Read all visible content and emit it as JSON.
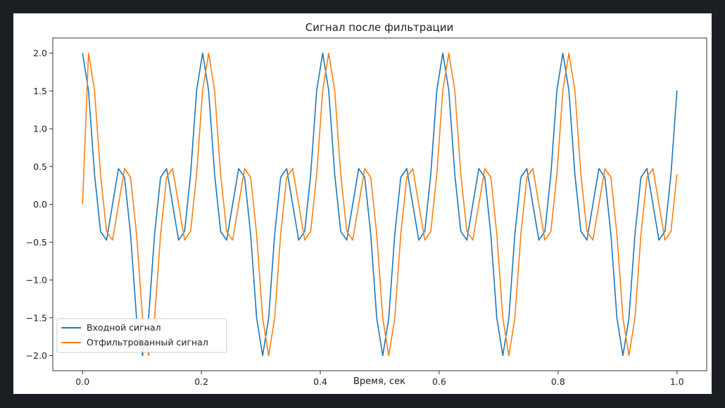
{
  "chart_data": {
    "type": "line",
    "title": "Сигнал после фильтрации",
    "xlabel": "Время, сек",
    "ylabel": "",
    "xlim": [
      -0.05,
      1.05
    ],
    "ylim": [
      -2.2,
      2.2
    ],
    "xticks": [
      0.0,
      0.2,
      0.4,
      0.6,
      0.8,
      1.0
    ],
    "xtick_labels": [
      "0.0",
      "0.2",
      "0.4",
      "0.6",
      "0.8",
      "1.0"
    ],
    "yticks": [
      -2.0,
      -1.5,
      -1.0,
      -0.5,
      0.0,
      0.5,
      1.0,
      1.5,
      2.0
    ],
    "ytick_labels": [
      "−2.0",
      "−1.5",
      "−1.0",
      "−0.5",
      "0.0",
      "0.5",
      "1.0",
      "1.5",
      "2.0"
    ],
    "grid": false,
    "legend": "lower-left",
    "sampling": {
      "x_start": 0.0,
      "x_end": 1.0,
      "points": 100
    },
    "series": [
      {
        "name": "Входной сигнал",
        "color": "#1f77b4",
        "values": [
          2.0,
          1.506,
          0.397,
          -0.357,
          -0.473,
          -0.0,
          0.473,
          0.357,
          -0.397,
          -1.506,
          -2.0,
          -1.506,
          -0.397,
          0.357,
          0.473,
          0.0,
          -0.473,
          -0.357,
          0.397,
          1.506,
          2.0,
          1.506,
          0.397,
          -0.357,
          -0.473,
          -0.0,
          0.473,
          0.357,
          -0.397,
          -1.506,
          -2.0,
          -1.506,
          -0.397,
          0.357,
          0.473,
          0.0,
          -0.473,
          -0.357,
          0.397,
          1.506,
          2.0,
          1.506,
          0.397,
          -0.357,
          -0.473,
          -0.0,
          0.473,
          0.357,
          -0.397,
          -1.506,
          -2.0,
          -1.506,
          -0.397,
          0.357,
          0.473,
          0.0,
          -0.473,
          -0.357,
          0.397,
          1.506,
          2.0,
          1.506,
          0.397,
          -0.357,
          -0.473,
          -0.0,
          0.473,
          0.357,
          -0.397,
          -1.506,
          -2.0,
          -1.506,
          -0.397,
          0.357,
          0.473,
          0.0,
          -0.473,
          -0.357,
          0.397,
          1.506,
          2.0,
          1.506,
          0.397,
          -0.357,
          -0.473,
          -0.0,
          0.473,
          0.357,
          -0.397,
          -1.506,
          -2.0,
          -1.506,
          -0.397,
          0.357,
          0.473,
          0.0,
          -0.473,
          -0.357,
          0.397,
          1.506
        ]
      },
      {
        "name": "Отфильтрованный сигнал",
        "color": "#ff7f0e",
        "values": [
          0.0,
          2.0,
          1.506,
          0.397,
          -0.357,
          -0.473,
          -0.0,
          0.473,
          0.357,
          -0.397,
          -1.506,
          -2.0,
          -1.506,
          -0.397,
          0.357,
          0.473,
          0.0,
          -0.473,
          -0.357,
          0.397,
          1.506,
          2.0,
          1.506,
          0.397,
          -0.357,
          -0.473,
          -0.0,
          0.473,
          0.357,
          -0.397,
          -1.506,
          -2.0,
          -1.506,
          -0.397,
          0.357,
          0.473,
          0.0,
          -0.473,
          -0.357,
          0.397,
          1.506,
          2.0,
          1.506,
          0.397,
          -0.357,
          -0.473,
          -0.0,
          0.473,
          0.357,
          -0.397,
          -1.506,
          -2.0,
          -1.506,
          -0.397,
          0.357,
          0.473,
          0.0,
          -0.473,
          -0.357,
          0.397,
          1.506,
          2.0,
          1.506,
          0.397,
          -0.357,
          -0.473,
          -0.0,
          0.473,
          0.357,
          -0.397,
          -1.506,
          -2.0,
          -1.506,
          -0.397,
          0.357,
          0.473,
          0.0,
          -0.473,
          -0.357,
          0.397,
          1.506,
          2.0,
          1.506,
          0.397,
          -0.357,
          -0.473,
          -0.0,
          0.473,
          0.357,
          -0.397,
          -1.506,
          -2.0,
          -1.506,
          -0.397,
          0.357,
          0.473,
          0.0,
          -0.473,
          -0.357,
          0.397
        ]
      }
    ]
  }
}
